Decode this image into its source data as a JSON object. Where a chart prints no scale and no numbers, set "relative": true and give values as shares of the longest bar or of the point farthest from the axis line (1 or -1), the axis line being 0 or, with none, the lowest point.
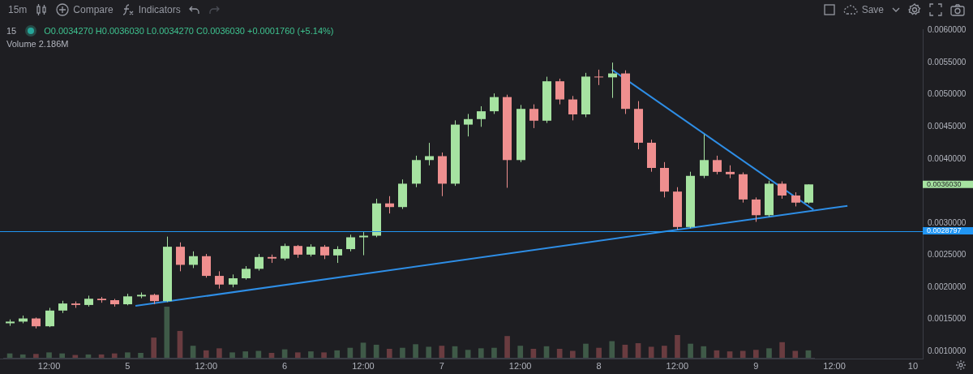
{
  "chart_data": [
    {
      "type": "candlestick",
      "x": [
        "--01-04T06:00",
        "--01-04T08:00",
        "--01-04T10:00",
        "--01-04T12:00",
        "--01-04T14:00",
        "--01-04T16:00",
        "--01-04T18:00",
        "--01-04T20:00",
        "--01-04T22:00",
        "--01-05T00:00",
        "--01-05T02:00",
        "--01-05T04:00",
        "--01-05T06:00",
        "--01-05T08:00",
        "--01-05T10:00",
        "--01-05T12:00",
        "--01-05T14:00",
        "--01-05T16:00",
        "--01-05T18:00",
        "--01-05T20:00",
        "--01-05T22:00",
        "--01-06T00:00",
        "--01-06T02:00",
        "--01-06T04:00",
        "--01-06T06:00",
        "--01-06T08:00",
        "--01-06T10:00",
        "--01-06T12:00",
        "--01-06T14:00",
        "--01-06T16:00",
        "--01-06T18:00",
        "--01-06T20:00",
        "--01-06T22:00",
        "--01-07T00:00",
        "--01-07T02:00",
        "--01-07T04:00",
        "--01-07T06:00",
        "--01-07T08:00",
        "--01-07T10:00",
        "--01-07T12:00",
        "--01-07T14:00",
        "--01-07T16:00",
        "--01-07T18:00",
        "--01-07T20:00",
        "--01-07T22:00",
        "--01-08T00:00",
        "--01-08T02:00",
        "--01-08T04:00",
        "--01-08T06:00",
        "--01-08T08:00",
        "--01-08T10:00",
        "--01-08T12:00",
        "--01-08T14:00",
        "--01-08T16:00",
        "--01-08T18:00",
        "--01-08T20:00",
        "--01-08T22:00",
        "--01-09T00:00",
        "--01-09T02:00",
        "--01-09T04:00",
        "--01-09T06:00",
        "--01-09T08:00"
      ],
      "xlim": [
        "--01-04T04:30",
        "--01-10T01:30"
      ],
      "xticks": [
        {
          "value": "--01-04T12:00",
          "label": "12:00"
        },
        {
          "value": "--01-05",
          "label": "5"
        },
        {
          "value": "--01-05T12:00",
          "label": "12:00"
        },
        {
          "value": "--01-06",
          "label": "6"
        },
        {
          "value": "--01-06T12:00",
          "label": "12:00"
        },
        {
          "value": "--01-07",
          "label": "7"
        },
        {
          "value": "--01-07T12:00",
          "label": "12:00"
        },
        {
          "value": "--01-08",
          "label": "8"
        },
        {
          "value": "--01-08T12:00",
          "label": "12:00"
        },
        {
          "value": "--01-09",
          "label": "9"
        },
        {
          "value": "--01-09T12:00",
          "label": "12:00"
        },
        {
          "value": "--01-10",
          "label": "10"
        }
      ],
      "ylim": [
        0.00089,
        0.00602
      ],
      "yticks": [
        {
          "value": 0.001,
          "label": "0.0010000"
        },
        {
          "value": 0.0015,
          "label": "0.0015000"
        },
        {
          "value": 0.002,
          "label": "0.0020000"
        },
        {
          "value": 0.0025,
          "label": "0.0025000"
        },
        {
          "value": 0.003,
          "label": "0.0030000"
        },
        {
          "value": 0.004,
          "label": "0.0040000"
        },
        {
          "value": 0.0045,
          "label": "0.0045000"
        },
        {
          "value": 0.005,
          "label": "0.0050000"
        },
        {
          "value": 0.0055,
          "label": "0.0055000"
        },
        {
          "value": 0.006,
          "label": "0.0060000"
        }
      ],
      "series": [
        {
          "type": "candlestick",
          "ohlc": [
            [
              0.00144,
              0.0015,
              0.0014,
              0.001466
            ],
            [
              0.001466,
              0.00156,
              0.00144,
              0.001515
            ],
            [
              0.001515,
              0.00153,
              0.00136,
              0.001393
            ],
            [
              0.001393,
              0.00168,
              0.00138,
              0.001638
            ],
            [
              0.001638,
              0.00179,
              0.0016,
              0.001748
            ],
            [
              0.001748,
              0.00178,
              0.00168,
              0.001725
            ],
            [
              0.001725,
              0.00187,
              0.0017,
              0.001822
            ],
            [
              0.001822,
              0.00185,
              0.00176,
              0.0018
            ],
            [
              0.0018,
              0.00182,
              0.0017,
              0.001736
            ],
            [
              0.001736,
              0.0019,
              0.00172,
              0.001859
            ],
            [
              0.001859,
              0.00192,
              0.00183,
              0.001883
            ],
            [
              0.001883,
              0.0019,
              0.00174,
              0.001785
            ],
            [
              0.001785,
              0.00279,
              0.00177,
              0.002632
            ],
            [
              0.002632,
              0.0027,
              0.00225,
              0.00235
            ],
            [
              0.00235,
              0.00256,
              0.0023,
              0.002485
            ],
            [
              0.002485,
              0.00252,
              0.00215,
              0.002178
            ],
            [
              0.002178,
              0.00225,
              0.00198,
              0.002043
            ],
            [
              0.002043,
              0.0022,
              0.002,
              0.002141
            ],
            [
              0.002141,
              0.00233,
              0.00212,
              0.002288
            ],
            [
              0.002288,
              0.00252,
              0.00226,
              0.002472
            ],
            [
              0.002472,
              0.00251,
              0.00238,
              0.002448
            ],
            [
              0.002448,
              0.00268,
              0.00242,
              0.002644
            ],
            [
              0.002644,
              0.00266,
              0.00246,
              0.002509
            ],
            [
              0.002509,
              0.00267,
              0.00248,
              0.002632
            ],
            [
              0.002632,
              0.00266,
              0.00244,
              0.002497
            ],
            [
              0.002497,
              0.00264,
              0.00238,
              0.002595
            ],
            [
              0.002595,
              0.00282,
              0.00256,
              0.002779
            ],
            [
              0.002779,
              0.00286,
              0.0025,
              0.002804
            ],
            [
              0.002804,
              0.00338,
              0.00278,
              0.003307
            ],
            [
              0.003307,
              0.00342,
              0.00315,
              0.00325
            ],
            [
              0.00325,
              0.00368,
              0.00322,
              0.003614
            ],
            [
              0.003614,
              0.00405,
              0.00356,
              0.003982
            ],
            [
              0.003982,
              0.00425,
              0.0039,
              0.004043
            ],
            [
              0.004043,
              0.0041,
              0.00342,
              0.003614
            ],
            [
              0.003614,
              0.0046,
              0.00358,
              0.004534
            ],
            [
              0.004534,
              0.0047,
              0.00435,
              0.00462
            ],
            [
              0.00462,
              0.00482,
              0.0045,
              0.004742
            ],
            [
              0.004742,
              0.00502,
              0.0047,
              0.004963
            ],
            [
              0.004963,
              0.005,
              0.00355,
              0.003982
            ],
            [
              0.003982,
              0.00484,
              0.00395,
              0.004779
            ],
            [
              0.004779,
              0.00485,
              0.00448,
              0.004595
            ],
            [
              0.004595,
              0.00528,
              0.00456,
              0.005209
            ],
            [
              0.005209,
              0.00525,
              0.00485,
              0.004926
            ],
            [
              0.004926,
              0.00498,
              0.0046,
              0.004693
            ],
            [
              0.004693,
              0.00534,
              0.00465,
              0.005282
            ],
            [
              0.005282,
              0.00539,
              0.00515,
              0.00527
            ],
            [
              0.00527,
              0.0055,
              0.00495,
              0.005331
            ],
            [
              0.005331,
              0.00538,
              0.0047,
              0.004779
            ],
            [
              0.004779,
              0.0049,
              0.00415,
              0.004252
            ],
            [
              0.004252,
              0.0043,
              0.0038,
              0.003859
            ],
            [
              0.003859,
              0.00395,
              0.0034,
              0.003491
            ],
            [
              0.003491,
              0.00356,
              0.0029,
              0.002939
            ],
            [
              0.002939,
              0.0038,
              0.00292,
              0.003736
            ],
            [
              0.003736,
              0.00438,
              0.0037,
              0.003982
            ],
            [
              0.003982,
              0.00405,
              0.00376,
              0.003798
            ],
            [
              0.003798,
              0.0039,
              0.0037,
              0.003761
            ],
            [
              0.003761,
              0.00379,
              0.00332,
              0.003368
            ],
            [
              0.003368,
              0.0034,
              0.00302,
              0.003123
            ],
            [
              0.003123,
              0.00366,
              0.0031,
              0.003614
            ],
            [
              0.003614,
              0.00365,
              0.00338,
              0.00343
            ],
            [
              0.00343,
              0.00348,
              0.00326,
              0.003319
            ],
            [
              0.003319,
              0.003603,
              0.0033,
              0.003603
            ]
          ],
          "colors": [
            "#a6e3a1",
            "#a6e3a1",
            "#ef8f8f",
            "#a6e3a1",
            "#a6e3a1",
            "#ef8f8f",
            "#a6e3a1",
            "#ef8f8f",
            "#ef8f8f",
            "#a6e3a1",
            "#a6e3a1",
            "#ef8f8f",
            "#a6e3a1",
            "#ef8f8f",
            "#a6e3a1",
            "#ef8f8f",
            "#ef8f8f",
            "#a6e3a1",
            "#a6e3a1",
            "#a6e3a1",
            "#ef8f8f",
            "#a6e3a1",
            "#ef8f8f",
            "#a6e3a1",
            "#ef8f8f",
            "#a6e3a1",
            "#a6e3a1",
            "#a6e3a1",
            "#a6e3a1",
            "#ef8f8f",
            "#a6e3a1",
            "#a6e3a1",
            "#a6e3a1",
            "#ef8f8f",
            "#a6e3a1",
            "#a6e3a1",
            "#a6e3a1",
            "#a6e3a1",
            "#ef8f8f",
            "#a6e3a1",
            "#ef8f8f",
            "#a6e3a1",
            "#ef8f8f",
            "#ef8f8f",
            "#a6e3a1",
            "#ef8f8f",
            "#a6e3a1",
            "#ef8f8f",
            "#ef8f8f",
            "#ef8f8f",
            "#ef8f8f",
            "#ef8f8f",
            "#a6e3a1",
            "#a6e3a1",
            "#ef8f8f",
            "#ef8f8f",
            "#ef8f8f",
            "#ef8f8f",
            "#a6e3a1",
            "#ef8f8f",
            "#ef8f8f",
            "#a6e3a1"
          ]
        },
        {
          "type": "line",
          "x": [
            "--01-05T01:12",
            "--01-09T14:00"
          ],
          "values": [
            0.00171,
            0.00327
          ],
          "color": "#2e8ee6"
        },
        {
          "type": "line",
          "x": [
            "--01-08T02:00",
            "--01-09T08:48"
          ],
          "values": [
            0.00539,
            0.00321
          ],
          "color": "#2e8ee6"
        }
      ],
      "ref_lines": [
        {
          "axis": "y",
          "value": 0.0028797,
          "label": "0.0028797",
          "color": "#2196f3"
        }
      ],
      "annotations": [
        "15m",
        "Compare",
        "Indicators",
        "Save",
        "15",
        "O0.0034270 H0.0036030 L0.0034270 C0.0036030 +0.0001760 (+5.14%)",
        "Volume 2.186M",
        "0.0036030"
      ],
      "legend": false
    },
    {
      "type": "bar",
      "relative": true,
      "categories": [
        null,
        null,
        null,
        null,
        null,
        null,
        null,
        null,
        null,
        null,
        null,
        null,
        null,
        null,
        null,
        null,
        null,
        null,
        null,
        null,
        null,
        null,
        null,
        null,
        null,
        null,
        null,
        null,
        null,
        null,
        null,
        null,
        null,
        null,
        null,
        null,
        null,
        null,
        null,
        null,
        null,
        null,
        null,
        null,
        null,
        null,
        null,
        null,
        null,
        null,
        null,
        null,
        null,
        null,
        null,
        null,
        null,
        null,
        null,
        null,
        null,
        null
      ],
      "values": [
        0.08,
        0.06,
        0.07,
        0.1,
        0.08,
        0.05,
        0.06,
        0.06,
        0.08,
        0.1,
        0.09,
        0.39,
        1,
        0.52,
        0.23,
        0.14,
        0.18,
        0.1,
        0.12,
        0.13,
        0.09,
        0.16,
        0.1,
        0.12,
        0.1,
        0.14,
        0.19,
        0.29,
        0.25,
        0.17,
        0.19,
        0.26,
        0.21,
        0.23,
        0.22,
        0.15,
        0.18,
        0.19,
        0.42,
        0.23,
        0.17,
        0.22,
        0.17,
        0.13,
        0.27,
        0.19,
        0.32,
        0.25,
        0.28,
        0.21,
        0.23,
        0.44,
        0.27,
        0.22,
        0.14,
        0.12,
        0.13,
        0.15,
        0.18,
        0.3,
        0.13,
        0.14
      ],
      "colors": [
        "#3f5a48",
        "#3f5a48",
        "#6a3c40",
        "#3f5a48",
        "#3f5a48",
        "#6a3c40",
        "#3f5a48",
        "#6a3c40",
        "#6a3c40",
        "#3f5a48",
        "#3f5a48",
        "#6a3c40",
        "#3f5a48",
        "#6a3c40",
        "#3f5a48",
        "#6a3c40",
        "#6a3c40",
        "#3f5a48",
        "#3f5a48",
        "#3f5a48",
        "#6a3c40",
        "#3f5a48",
        "#6a3c40",
        "#3f5a48",
        "#6a3c40",
        "#3f5a48",
        "#3f5a48",
        "#3f5a48",
        "#3f5a48",
        "#6a3c40",
        "#3f5a48",
        "#3f5a48",
        "#3f5a48",
        "#6a3c40",
        "#3f5a48",
        "#3f5a48",
        "#3f5a48",
        "#3f5a48",
        "#6a3c40",
        "#3f5a48",
        "#6a3c40",
        "#3f5a48",
        "#6a3c40",
        "#6a3c40",
        "#3f5a48",
        "#6a3c40",
        "#3f5a48",
        "#6a3c40",
        "#6a3c40",
        "#6a3c40",
        "#6a3c40",
        "#6a3c40",
        "#3f5a48",
        "#3f5a48",
        "#6a3c40",
        "#6a3c40",
        "#6a3c40",
        "#6a3c40",
        "#3f5a48",
        "#6a3c40",
        "#6a3c40",
        "#3f5a48"
      ],
      "legend": false
    }
  ]
}
